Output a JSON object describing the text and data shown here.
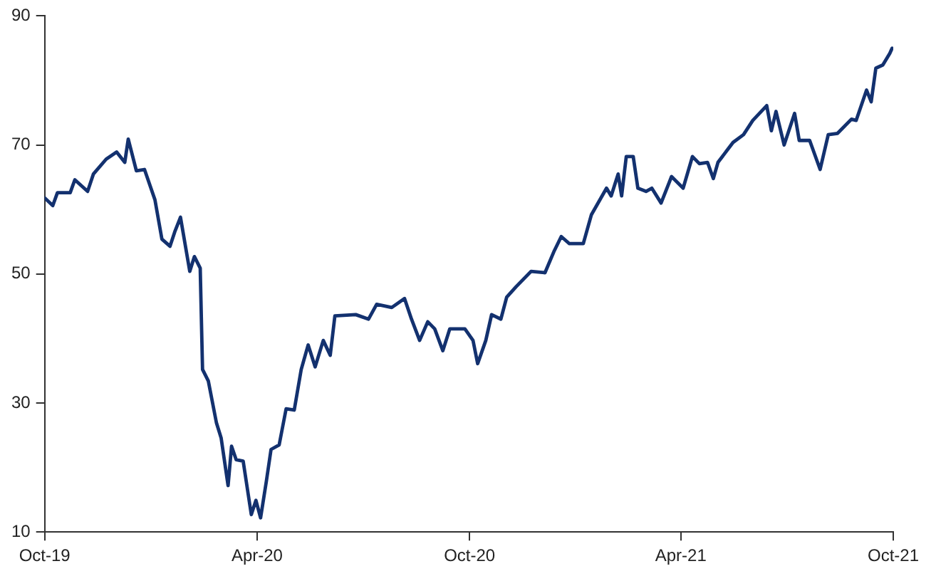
{
  "chart_data": {
    "type": "line",
    "x": [
      "2019-10-01",
      "2019-10-08",
      "2019-10-12",
      "2019-10-23",
      "2019-10-27",
      "2019-11-07",
      "2019-11-12",
      "2019-11-23",
      "2019-12-02",
      "2019-12-09",
      "2019-12-12",
      "2019-12-19",
      "2019-12-26",
      "2020-01-04",
      "2020-01-10",
      "2020-01-17",
      "2020-01-21",
      "2020-01-26",
      "2020-02-03",
      "2020-02-07",
      "2020-02-12",
      "2020-02-14",
      "2020-02-19",
      "2020-02-26",
      "2020-03-01",
      "2020-03-07",
      "2020-03-10",
      "2020-03-14",
      "2020-03-20",
      "2020-03-27",
      "2020-03-31",
      "2020-04-04",
      "2020-04-09",
      "2020-04-13",
      "2020-04-20",
      "2020-04-26",
      "2020-05-03",
      "2020-05-09",
      "2020-05-15",
      "2020-05-21",
      "2020-05-28",
      "2020-06-03",
      "2020-06-07",
      "2020-06-25",
      "2020-07-06",
      "2020-07-13",
      "2020-07-26",
      "2020-08-06",
      "2020-08-12",
      "2020-08-19",
      "2020-08-26",
      "2020-09-01",
      "2020-09-08",
      "2020-09-14",
      "2020-09-27",
      "2020-10-04",
      "2020-10-08",
      "2020-10-15",
      "2020-10-20",
      "2020-10-28",
      "2020-11-02",
      "2020-11-10",
      "2020-11-23",
      "2020-12-05",
      "2020-12-13",
      "2020-12-19",
      "2020-12-26",
      "2021-01-07",
      "2021-01-14",
      "2021-01-27",
      "2021-01-31",
      "2021-02-06",
      "2021-02-09",
      "2021-02-13",
      "2021-02-19",
      "2021-02-23",
      "2021-03-02",
      "2021-03-07",
      "2021-03-15",
      "2021-03-24",
      "2021-04-03",
      "2021-04-11",
      "2021-04-17",
      "2021-04-24",
      "2021-04-29",
      "2021-05-03",
      "2021-05-16",
      "2021-05-25",
      "2021-06-02",
      "2021-06-14",
      "2021-06-18",
      "2021-06-22",
      "2021-06-29",
      "2021-07-08",
      "2021-07-12",
      "2021-07-21",
      "2021-07-30",
      "2021-08-06",
      "2021-08-14",
      "2021-08-26",
      "2021-08-30",
      "2021-09-08",
      "2021-09-12",
      "2021-09-16",
      "2021-09-22",
      "2021-09-28",
      "2021-09-30"
    ],
    "series": [
      {
        "color": "#13316f",
        "values": [
          61.8,
          60.6,
          62.6,
          62.6,
          64.6,
          62.8,
          65.5,
          67.8,
          68.9,
          67.3,
          70.9,
          66,
          66.2,
          61.5,
          55.4,
          54.3,
          56.5,
          58.8,
          50.4,
          52.7,
          50.9,
          35.2,
          33.4,
          26.9,
          24.6,
          17.2,
          23.3,
          21.2,
          21,
          12.7,
          14.9,
          12.2,
          17.9,
          22.8,
          23.5,
          29.1,
          28.9,
          35.2,
          39,
          35.6,
          39.7,
          37.4,
          43.5,
          43.7,
          43,
          45.3,
          44.8,
          46.2,
          43,
          39.7,
          42.6,
          41.5,
          38.1,
          41.5,
          41.5,
          39.7,
          36.1,
          39.7,
          43.7,
          43,
          46.4,
          48,
          50.4,
          50.2,
          53.6,
          55.8,
          54.7,
          54.7,
          59.2,
          63.3,
          62.1,
          65.5,
          62.1,
          68.2,
          68.2,
          63.3,
          62.8,
          63.3,
          61,
          65.1,
          63.3,
          68.2,
          67.1,
          67.3,
          64.8,
          67.3,
          70.4,
          71.6,
          73.8,
          76.1,
          72.2,
          75.2,
          70,
          74.9,
          70.7,
          70.7,
          66.2,
          71.6,
          71.8,
          74,
          73.8,
          78.5,
          76.7,
          81.9,
          82.4,
          84.2,
          85
        ]
      }
    ],
    "xlim": [
      "2019-10-01",
      "2021-10-01"
    ],
    "xticks": [
      {
        "value": "2019-10-01",
        "label": "Oct-19"
      },
      {
        "value": "2020-04-01",
        "label": "Apr-20"
      },
      {
        "value": "2020-10-01",
        "label": "Oct-20"
      },
      {
        "value": "2021-04-01",
        "label": "Apr-21"
      },
      {
        "value": "2021-10-01",
        "label": "Oct-21"
      }
    ],
    "ylim": [
      10,
      90
    ],
    "yticks": [
      10,
      30,
      50,
      70,
      90
    ],
    "grid": false,
    "legend": false,
    "marker": "none",
    "line_style": "solid"
  }
}
